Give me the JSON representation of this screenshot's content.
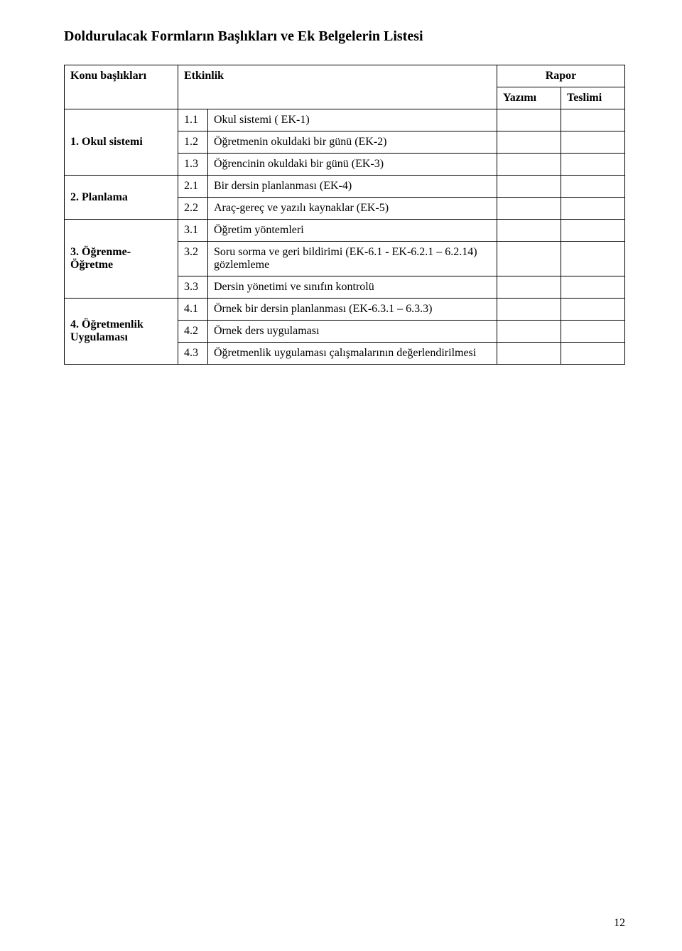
{
  "title": "Doldurulacak Formların Başlıkları ve Ek Belgelerin Listesi",
  "header": {
    "konu": "Konu başlıkları",
    "etkinlik": "Etkinlik",
    "rapor": "Rapor",
    "yazimi": "Yazımı",
    "teslimi": "Teslimi"
  },
  "groups": [
    {
      "label": "1. Okul sistemi",
      "rows": [
        {
          "num": "1.1",
          "act": "Okul sistemi ( EK-1)"
        },
        {
          "num": "1.2",
          "act": "Öğretmenin okuldaki bir günü (EK-2)"
        },
        {
          "num": "1.3",
          "act": "Öğrencinin okuldaki bir günü (EK-3)"
        }
      ]
    },
    {
      "label": "2. Planlama",
      "rows": [
        {
          "num": "2.1",
          "act": "Bir dersin planlanması (EK-4)"
        },
        {
          "num": "2.2",
          "act": "Araç-gereç ve yazılı kaynaklar (EK-5)"
        }
      ]
    },
    {
      "label": "3. Öğrenme-Öğretme",
      "rows": [
        {
          "num": "3.1",
          "act": "Öğretim yöntemleri"
        },
        {
          "num": "3.2",
          "act": "Soru sorma ve geri bildirimi (EK-6.1 - EK-6.2.1 – 6.2.14) gözlemleme"
        },
        {
          "num": "3.3",
          "act": "Dersin yönetimi ve sınıfın kontrolü"
        }
      ]
    },
    {
      "label": "4. Öğretmenlik Uygulaması",
      "rows": [
        {
          "num": "4.1",
          "act": "Örnek bir dersin planlanması (EK-6.3.1 – 6.3.3)"
        },
        {
          "num": "4.2",
          "act": "Örnek ders uygulaması"
        },
        {
          "num": "4.3",
          "act": "Öğretmenlik uygulaması çalışmalarının değerlendirilmesi"
        }
      ]
    }
  ],
  "pageNumber": "12"
}
